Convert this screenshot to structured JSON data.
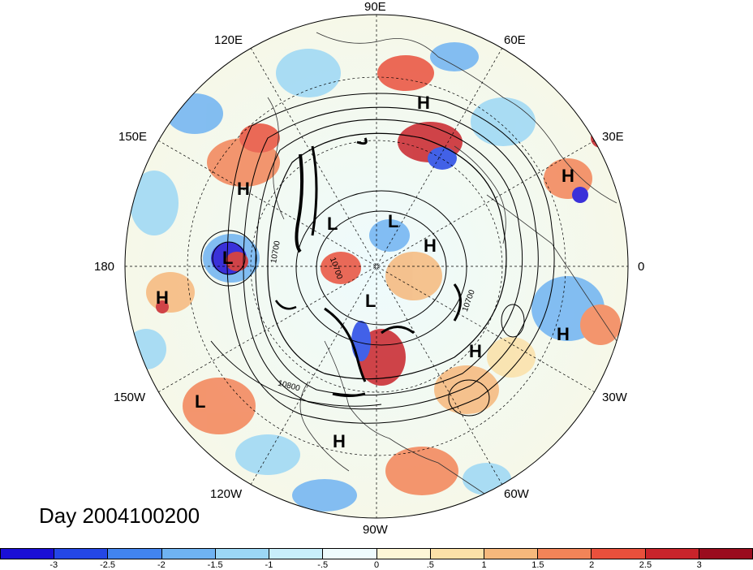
{
  "title": "Day 2004100200",
  "longitude_labels": [
    "90E",
    "60E",
    "30E",
    "0",
    "30W",
    "60W",
    "90W",
    "120W",
    "150W",
    "180",
    "150E",
    "120E"
  ],
  "pressure_centers": [
    {
      "label": "H"
    },
    {
      "label": "H"
    },
    {
      "label": "H"
    },
    {
      "label": "L"
    },
    {
      "label": "L"
    },
    {
      "label": "H"
    },
    {
      "label": "H"
    },
    {
      "label": "L"
    },
    {
      "label": "H"
    },
    {
      "label": "H"
    },
    {
      "label": "L"
    },
    {
      "label": "H"
    },
    {
      "label": "L"
    }
  ],
  "contour_labels": [
    "10800",
    "10700",
    "10700",
    "10700"
  ],
  "colorbar": {
    "colors": [
      "#1a0fd6",
      "#2447e6",
      "#4284ef",
      "#6fb3f2",
      "#9cd7f5",
      "#c8eefa",
      "#eefbfd",
      "#fdf6d7",
      "#fbe1a8",
      "#f6b87c",
      "#f28458",
      "#e9503c",
      "#c9242b",
      "#9a0c1e"
    ],
    "tick_labels": [
      "-3",
      "-2.5",
      "-2",
      "-1.5",
      "-1",
      "-.5",
      "0",
      ".5",
      "1",
      "1.5",
      "2",
      "2.5",
      "3"
    ]
  }
}
